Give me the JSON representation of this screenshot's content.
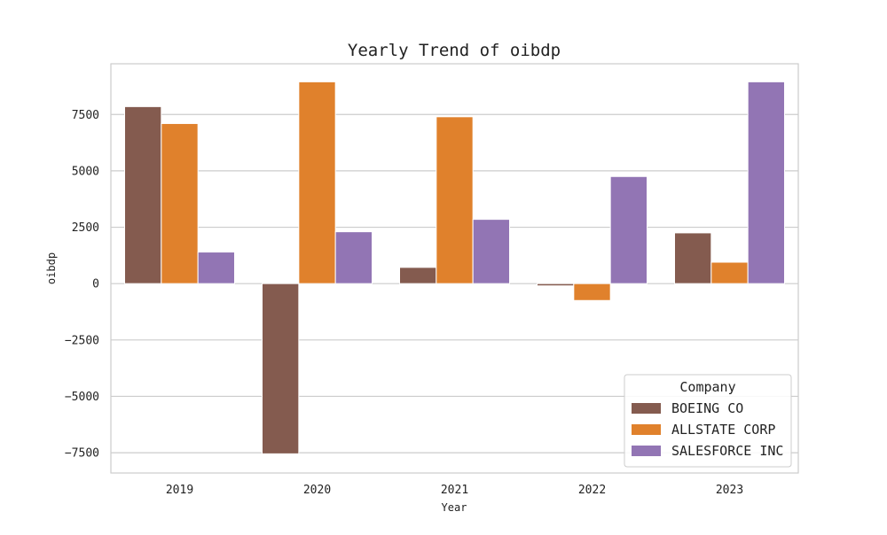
{
  "chart_data": {
    "type": "bar",
    "title": "Yearly Trend of oibdp",
    "xlabel": "Year",
    "ylabel": "oibdp",
    "categories": [
      "2019",
      "2020",
      "2021",
      "2022",
      "2023"
    ],
    "series": [
      {
        "name": "BOEING CO",
        "color": "#845b4f",
        "values": [
          7850,
          -7550,
          720,
          -100,
          2250
        ]
      },
      {
        "name": "ALLSTATE CORP",
        "color": "#e0812c",
        "values": [
          7100,
          8950,
          7400,
          -750,
          950
        ]
      },
      {
        "name": "SALESFORCE INC",
        "color": "#9275b4",
        "values": [
          1400,
          2300,
          2850,
          4750,
          8950
        ]
      }
    ],
    "ylim": [
      -8400,
      9750
    ],
    "yticks": [
      -7500,
      -5000,
      -2500,
      0,
      2500,
      5000,
      7500
    ],
    "ytick_labels": [
      "−7500",
      "−5000",
      "−2500",
      "0",
      "2500",
      "5000",
      "7500"
    ],
    "grid": true,
    "legend": {
      "title": "Company",
      "placement": "lower-right"
    }
  }
}
